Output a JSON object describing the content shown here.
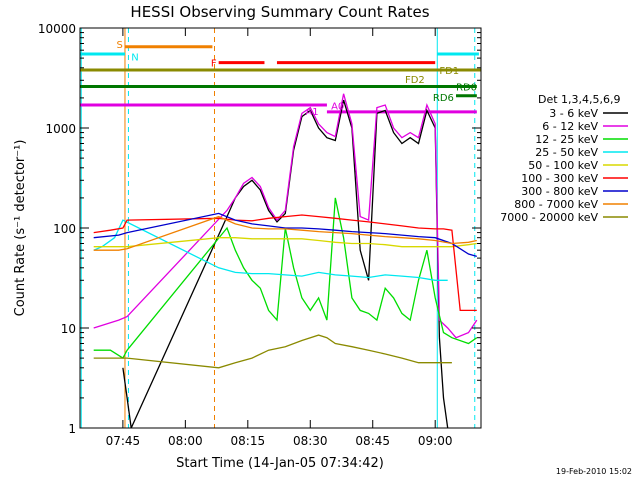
{
  "chart_data": {
    "type": "line",
    "title": "HESSI Observing Summary Count Rates",
    "xlabel": "Start Time (14-Jan-05 07:34:42)",
    "ylabel": "Count Rate (s⁻¹ detector⁻¹)",
    "ylog": true,
    "ylim": [
      1,
      10000
    ],
    "xlim": [
      "07:34:42",
      "09:11:00"
    ],
    "x_ticks": [
      "07:45",
      "08:00",
      "08:15",
      "08:30",
      "08:45",
      "09:00"
    ],
    "y_ticks": [
      "1",
      "10",
      "100",
      "1000",
      "10000"
    ],
    "timestamp": "19-Feb-2010 15:02",
    "legend": {
      "title": "Det 1,3,4,5,6,9",
      "placement": "right"
    },
    "series": [
      {
        "name": "3 - 6 keV",
        "color": "#000000",
        "points": [
          [
            "07:45",
            4
          ],
          [
            "07:46",
            2
          ],
          [
            "07:47",
            1
          ],
          [
            "08:10",
            130
          ],
          [
            "08:12",
            200
          ],
          [
            "08:14",
            260
          ],
          [
            "08:16",
            300
          ],
          [
            "08:18",
            240
          ],
          [
            "08:20",
            150
          ],
          [
            "08:22",
            115
          ],
          [
            "08:24",
            140
          ],
          [
            "08:26",
            600
          ],
          [
            "08:28",
            1300
          ],
          [
            "08:30",
            1500
          ],
          [
            "08:32",
            1000
          ],
          [
            "08:34",
            800
          ],
          [
            "08:36",
            750
          ],
          [
            "08:38",
            1900
          ],
          [
            "08:40",
            1000
          ],
          [
            "08:42",
            60
          ],
          [
            "08:44",
            30
          ],
          [
            "08:46",
            1400
          ],
          [
            "08:48",
            1500
          ],
          [
            "08:50",
            900
          ],
          [
            "08:52",
            700
          ],
          [
            "08:54",
            800
          ],
          [
            "08:56",
            700
          ],
          [
            "08:58",
            1500
          ],
          [
            "09:00",
            1000
          ],
          [
            "09:01",
            8
          ],
          [
            "09:02",
            2
          ],
          [
            "09:03",
            1
          ]
        ]
      },
      {
        "name": "6 - 12 keV",
        "color": "#e000e0",
        "points": [
          [
            "07:38",
            10
          ],
          [
            "07:44",
            12
          ],
          [
            "07:46",
            13
          ],
          [
            "08:10",
            150
          ],
          [
            "08:12",
            200
          ],
          [
            "08:14",
            280
          ],
          [
            "08:16",
            320
          ],
          [
            "08:18",
            260
          ],
          [
            "08:20",
            160
          ],
          [
            "08:22",
            120
          ],
          [
            "08:24",
            150
          ],
          [
            "08:26",
            650
          ],
          [
            "08:28",
            1400
          ],
          [
            "08:30",
            1600
          ],
          [
            "08:32",
            1100
          ],
          [
            "08:34",
            900
          ],
          [
            "08:36",
            820
          ],
          [
            "08:38",
            2200
          ],
          [
            "08:40",
            1100
          ],
          [
            "08:42",
            130
          ],
          [
            "08:44",
            120
          ],
          [
            "08:46",
            1600
          ],
          [
            "08:48",
            1700
          ],
          [
            "08:50",
            1000
          ],
          [
            "08:52",
            800
          ],
          [
            "08:54",
            900
          ],
          [
            "08:56",
            800
          ],
          [
            "08:58",
            1700
          ],
          [
            "09:00",
            1100
          ],
          [
            "09:01",
            12
          ],
          [
            "09:03",
            10
          ],
          [
            "09:05",
            8
          ],
          [
            "09:08",
            9
          ],
          [
            "09:10",
            12
          ]
        ]
      },
      {
        "name": "12 - 25 keV",
        "color": "#00dd00",
        "points": [
          [
            "07:38",
            6
          ],
          [
            "07:42",
            6
          ],
          [
            "07:45",
            5
          ],
          [
            "07:46",
            6
          ],
          [
            "08:10",
            100
          ],
          [
            "08:12",
            60
          ],
          [
            "08:14",
            40
          ],
          [
            "08:16",
            30
          ],
          [
            "08:18",
            25
          ],
          [
            "08:20",
            15
          ],
          [
            "08:22",
            12
          ],
          [
            "08:24",
            100
          ],
          [
            "08:26",
            40
          ],
          [
            "08:28",
            20
          ],
          [
            "08:30",
            15
          ],
          [
            "08:32",
            20
          ],
          [
            "08:34",
            12
          ],
          [
            "08:36",
            200
          ],
          [
            "08:38",
            80
          ],
          [
            "08:40",
            20
          ],
          [
            "08:42",
            15
          ],
          [
            "08:44",
            14
          ],
          [
            "08:46",
            12
          ],
          [
            "08:48",
            25
          ],
          [
            "08:50",
            20
          ],
          [
            "08:52",
            14
          ],
          [
            "08:54",
            12
          ],
          [
            "08:56",
            30
          ],
          [
            "08:58",
            60
          ],
          [
            "09:00",
            20
          ],
          [
            "09:02",
            9
          ],
          [
            "09:04",
            8
          ],
          [
            "09:08",
            7
          ],
          [
            "09:10",
            8
          ]
        ]
      },
      {
        "name": "25 - 50 keV",
        "color": "#00e8f0",
        "points": [
          [
            "07:38",
            60
          ],
          [
            "07:40",
            65
          ],
          [
            "07:43",
            80
          ],
          [
            "07:45",
            120
          ],
          [
            "08:08",
            40
          ],
          [
            "08:12",
            36
          ],
          [
            "08:16",
            35
          ],
          [
            "08:20",
            35
          ],
          [
            "08:24",
            34
          ],
          [
            "08:28",
            33
          ],
          [
            "08:32",
            36
          ],
          [
            "08:36",
            34
          ],
          [
            "08:40",
            33
          ],
          [
            "08:44",
            32
          ],
          [
            "08:48",
            34
          ],
          [
            "08:52",
            33
          ],
          [
            "08:56",
            32
          ],
          [
            "09:00",
            30
          ],
          [
            "09:03",
            30
          ]
        ]
      },
      {
        "name": "50 - 100 keV",
        "color": "#d8d800",
        "points": [
          [
            "07:38",
            65
          ],
          [
            "07:44",
            65
          ],
          [
            "07:46",
            65
          ],
          [
            "08:08",
            80
          ],
          [
            "08:12",
            80
          ],
          [
            "08:16",
            78
          ],
          [
            "08:20",
            78
          ],
          [
            "08:24",
            78
          ],
          [
            "08:28",
            78
          ],
          [
            "08:32",
            75
          ],
          [
            "08:36",
            72
          ],
          [
            "08:40",
            70
          ],
          [
            "08:44",
            70
          ],
          [
            "08:48",
            68
          ],
          [
            "08:52",
            65
          ],
          [
            "08:56",
            65
          ],
          [
            "09:00",
            65
          ],
          [
            "09:04",
            65
          ],
          [
            "09:08",
            68
          ],
          [
            "09:10",
            70
          ]
        ]
      },
      {
        "name": "100 - 300 keV",
        "color": "#ff0000",
        "points": [
          [
            "07:38",
            90
          ],
          [
            "07:42",
            95
          ],
          [
            "07:45",
            100
          ],
          [
            "07:46",
            120
          ],
          [
            "08:08",
            125
          ],
          [
            "08:12",
            120
          ],
          [
            "08:16",
            118
          ],
          [
            "08:20",
            125
          ],
          [
            "08:24",
            130
          ],
          [
            "08:28",
            135
          ],
          [
            "08:32",
            130
          ],
          [
            "08:36",
            125
          ],
          [
            "08:40",
            120
          ],
          [
            "08:44",
            115
          ],
          [
            "08:48",
            110
          ],
          [
            "08:52",
            105
          ],
          [
            "08:56",
            100
          ],
          [
            "09:00",
            98
          ],
          [
            "09:02",
            98
          ],
          [
            "09:04",
            95
          ],
          [
            "09:06",
            15
          ],
          [
            "09:10",
            15
          ]
        ]
      },
      {
        "name": "300 - 800 keV",
        "color": "#0000cc",
        "points": [
          [
            "07:38",
            80
          ],
          [
            "07:44",
            85
          ],
          [
            "07:46",
            90
          ],
          [
            "08:08",
            140
          ],
          [
            "08:12",
            120
          ],
          [
            "08:16",
            110
          ],
          [
            "08:20",
            105
          ],
          [
            "08:24",
            100
          ],
          [
            "08:28",
            100
          ],
          [
            "08:32",
            98
          ],
          [
            "08:36",
            95
          ],
          [
            "08:40",
            92
          ],
          [
            "08:44",
            90
          ],
          [
            "08:48",
            88
          ],
          [
            "08:52",
            85
          ],
          [
            "08:56",
            82
          ],
          [
            "09:00",
            80
          ],
          [
            "09:04",
            70
          ],
          [
            "09:08",
            55
          ],
          [
            "09:10",
            52
          ]
        ]
      },
      {
        "name": "800 - 7000 keV",
        "color": "#f08000",
        "points": [
          [
            "07:38",
            60
          ],
          [
            "07:44",
            60
          ],
          [
            "07:46",
            62
          ],
          [
            "08:08",
            130
          ],
          [
            "08:12",
            110
          ],
          [
            "08:16",
            100
          ],
          [
            "08:20",
            98
          ],
          [
            "08:24",
            98
          ],
          [
            "08:28",
            95
          ],
          [
            "08:32",
            92
          ],
          [
            "08:36",
            90
          ],
          [
            "08:40",
            88
          ],
          [
            "08:44",
            85
          ],
          [
            "08:48",
            82
          ],
          [
            "08:52",
            80
          ],
          [
            "08:56",
            78
          ],
          [
            "09:00",
            75
          ],
          [
            "09:04",
            70
          ],
          [
            "09:08",
            72
          ],
          [
            "09:10",
            75
          ]
        ]
      },
      {
        "name": "7000 - 20000 keV",
        "color": "#8a8a00",
        "points": [
          [
            "07:38",
            5
          ],
          [
            "07:44",
            5
          ],
          [
            "07:46",
            5
          ],
          [
            "08:08",
            4
          ],
          [
            "08:12",
            4.5
          ],
          [
            "08:16",
            5
          ],
          [
            "08:20",
            6
          ],
          [
            "08:24",
            6.5
          ],
          [
            "08:28",
            7.5
          ],
          [
            "08:32",
            8.5
          ],
          [
            "08:34",
            8
          ],
          [
            "08:36",
            7
          ],
          [
            "08:40",
            6.5
          ],
          [
            "08:44",
            6
          ],
          [
            "08:48",
            5.5
          ],
          [
            "08:52",
            5
          ],
          [
            "08:56",
            4.5
          ],
          [
            "09:00",
            4.5
          ],
          [
            "09:04",
            4.5
          ]
        ]
      }
    ],
    "flag_bars": [
      {
        "label": "S",
        "color": "#f08000",
        "level": 6500,
        "segments": [
          [
            "07:45:30",
            "08:06:30"
          ]
        ]
      },
      {
        "label": "N",
        "color": "#00e8f0",
        "level": 5500,
        "segments": [
          [
            "07:34:42",
            "07:45:30"
          ],
          [
            "09:00:30",
            "09:10:30"
          ]
        ]
      },
      {
        "label": "F",
        "color": "#ff0000",
        "level": 4500,
        "segments": [
          [
            "08:08",
            "08:19"
          ],
          [
            "08:22",
            "09:00"
          ]
        ]
      },
      {
        "label": "FD1",
        "color": "#8a8a00",
        "level": 3800,
        "segments": [
          [
            "07:34:42",
            "09:11"
          ]
        ]
      },
      {
        "label": "FD2",
        "color": "#8a8a00",
        "level": 3800,
        "segments": []
      },
      {
        "label": "RD0",
        "color": "#007700",
        "level": 2600,
        "segments": [
          [
            "07:34:42",
            "09:10"
          ]
        ]
      },
      {
        "label": "RD6",
        "color": "#007700",
        "level": 2100,
        "segments": [
          [
            "09:05",
            "09:10"
          ]
        ]
      },
      {
        "label": "A1",
        "color": "#e000e0",
        "level": 1700,
        "segments": [
          [
            "07:34:42",
            "08:34"
          ]
        ]
      },
      {
        "label": "A0",
        "color": "#e000e0",
        "level": 1450,
        "segments": [
          [
            "08:34",
            "09:10"
          ]
        ]
      }
    ],
    "vertical_markers": [
      {
        "time": "07:35:00",
        "color": "#00e8f0",
        "style": "solid"
      },
      {
        "time": "07:46:20",
        "color": "#00e8f0",
        "style": "dashed"
      },
      {
        "time": "07:45:30",
        "color": "#f08000",
        "style": "solid"
      },
      {
        "time": "08:07:00",
        "color": "#f08000",
        "style": "dashed"
      },
      {
        "time": "09:00:30",
        "color": "#00e8f0",
        "style": "solid"
      },
      {
        "time": "09:09:30",
        "color": "#00e8f0",
        "style": "dashed"
      }
    ]
  }
}
